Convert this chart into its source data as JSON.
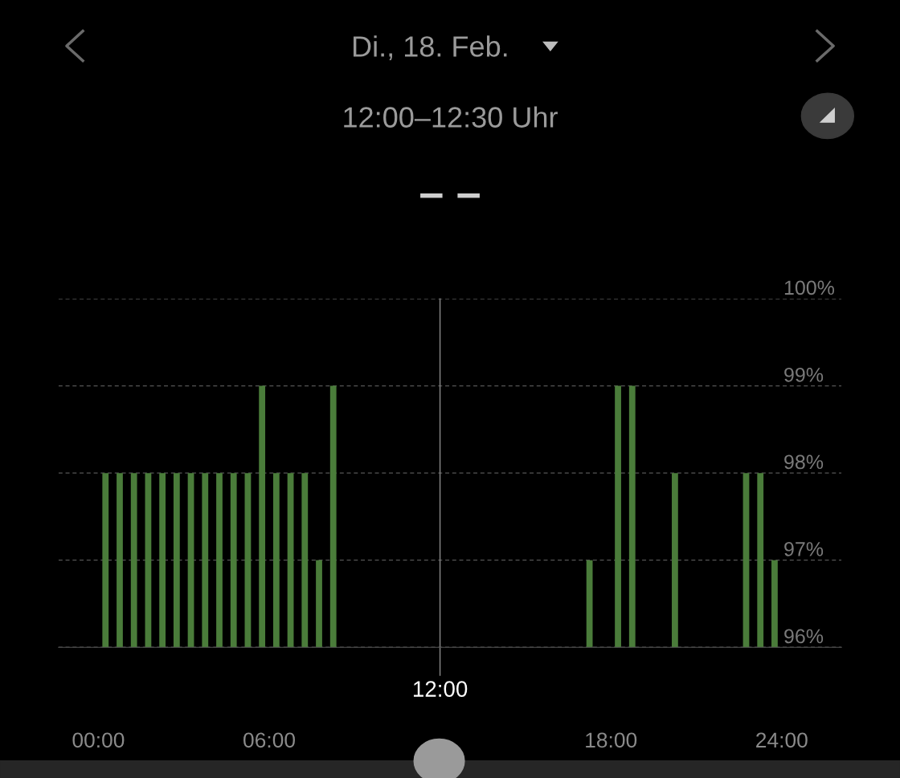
{
  "chart_data": {
    "type": "bar",
    "title": "Di., 18. Feb.",
    "subtitle": "12:00–12:30 Uhr",
    "annotations": [
      "– –"
    ],
    "x": [
      0.25,
      0.75,
      1.25,
      1.75,
      2.25,
      2.75,
      3.25,
      3.75,
      4.25,
      4.75,
      5.25,
      5.75,
      6.25,
      6.75,
      7.25,
      7.75,
      8.25,
      17.25,
      18.25,
      18.75,
      20.25,
      22.75,
      23.25,
      23.75
    ],
    "values": [
      98,
      98,
      98,
      98,
      98,
      98,
      98,
      98,
      98,
      98,
      98,
      99,
      98,
      98,
      98,
      97,
      99,
      97,
      99,
      99,
      98,
      98,
      98,
      97
    ],
    "color": "#4a7c3a",
    "xlim": [
      -1.4,
      26.1
    ],
    "xticks": [
      {
        "value": 0,
        "label": "00:00"
      },
      {
        "value": 6,
        "label": "06:00"
      },
      {
        "value": 18,
        "label": "18:00"
      },
      {
        "value": 24,
        "label": "24:00"
      }
    ],
    "ylim": [
      96,
      100
    ],
    "yticks": [
      {
        "value": 96,
        "label": "96%"
      },
      {
        "value": 97,
        "label": "97%"
      },
      {
        "value": 98,
        "label": "98%"
      },
      {
        "value": 99,
        "label": "99%"
      },
      {
        "value": 100,
        "label": "100%"
      }
    ],
    "grid": "y",
    "ref_lines": [
      {
        "axis": "x",
        "value": 12,
        "label": "12:00",
        "color": "#8a8a8a"
      }
    ]
  }
}
